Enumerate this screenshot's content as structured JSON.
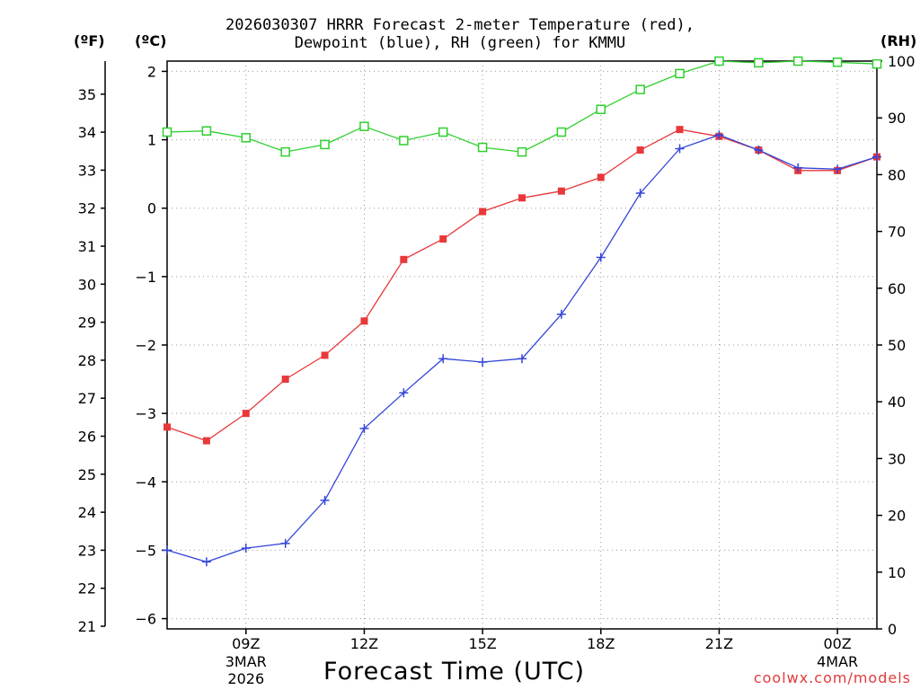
{
  "chart_data": {
    "type": "line",
    "title_line1": "2026030307 HRRR Forecast 2-meter Temperature (red),",
    "title_line2": "Dewpoint (blue), RH (green) for KMMU",
    "xlabel": "Forecast Time (UTC)",
    "credit": "coolwx.com/models",
    "units": {
      "left_outer": "(ºF)",
      "left_inner": "(ºC)",
      "right": "(RH)"
    },
    "x_hours": [
      7,
      8,
      9,
      10,
      11,
      12,
      13,
      14,
      15,
      16,
      17,
      18,
      19,
      20,
      21,
      22,
      23,
      24,
      25
    ],
    "xlim": [
      7,
      25
    ],
    "x_ticks": [
      {
        "hour": 9,
        "label": "09Z",
        "sub1": "3MAR",
        "sub2": "2026"
      },
      {
        "hour": 12,
        "label": "12Z",
        "sub1": "",
        "sub2": ""
      },
      {
        "hour": 15,
        "label": "15Z",
        "sub1": "",
        "sub2": ""
      },
      {
        "hour": 18,
        "label": "18Z",
        "sub1": "",
        "sub2": ""
      },
      {
        "hour": 21,
        "label": "21Z",
        "sub1": "",
        "sub2": ""
      },
      {
        "hour": 24,
        "label": "00Z",
        "sub1": "4MAR",
        "sub2": ""
      }
    ],
    "celsius_axis": {
      "ylim": [
        -6.15,
        2.15
      ],
      "ticks": [
        "2",
        "1",
        "0",
        "−1",
        "−2",
        "−3",
        "−4",
        "−5",
        "−6"
      ],
      "tick_values": [
        2,
        1,
        0,
        -1,
        -2,
        -3,
        -4,
        -5,
        -6
      ]
    },
    "fahrenheit_axis": {
      "ticks": [
        "35",
        "34",
        "33",
        "32",
        "31",
        "30",
        "29",
        "28",
        "27",
        "26",
        "25",
        "24",
        "23",
        "22",
        "21"
      ],
      "tick_values": [
        35,
        34,
        33,
        32,
        31,
        30,
        29,
        28,
        27,
        26,
        25,
        24,
        23,
        22,
        21
      ]
    },
    "rh_axis": {
      "ylim": [
        0,
        100
      ],
      "ticks": [
        "100",
        "90",
        "80",
        "70",
        "60",
        "50",
        "40",
        "30",
        "20",
        "10",
        "0"
      ],
      "tick_values": [
        100,
        90,
        80,
        70,
        60,
        50,
        40,
        30,
        20,
        10,
        0
      ]
    },
    "series": [
      {
        "name": "Temperature",
        "unit": "C",
        "color": "#e8383a",
        "marker": "filled-square",
        "values": [
          -3.2,
          -3.4,
          -3.0,
          -2.5,
          -2.15,
          -1.65,
          -0.75,
          -0.45,
          -0.05,
          0.15,
          0.25,
          0.45,
          0.85,
          1.15,
          1.05,
          0.85,
          0.55,
          0.55,
          0.75
        ]
      },
      {
        "name": "Dewpoint",
        "unit": "C",
        "color": "#3346d8",
        "marker": "plus",
        "values": [
          -5.0,
          -5.17,
          -4.97,
          -4.9,
          -4.27,
          -3.22,
          -2.7,
          -2.2,
          -2.25,
          -2.2,
          -1.55,
          -0.72,
          0.22,
          0.87,
          1.07,
          0.85,
          0.59,
          0.57,
          0.75
        ]
      },
      {
        "name": "RH",
        "unit": "%",
        "color": "#2ed02e",
        "marker": "open-square",
        "values": [
          87.5,
          87.7,
          86.5,
          84.0,
          85.3,
          88.5,
          86.0,
          87.5,
          84.8,
          84.0,
          87.5,
          91.5,
          95.0,
          97.8,
          100.0,
          99.7,
          100.0,
          99.8,
          99.5
        ]
      }
    ]
  }
}
